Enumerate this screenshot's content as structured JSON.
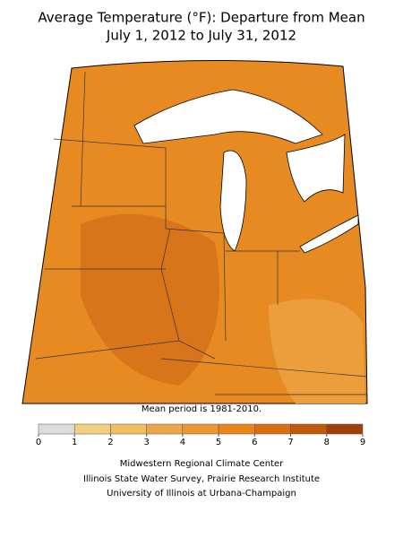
{
  "title": [
    "Average Temperature (°F): Departure from Mean",
    "July 1, 2012 to July 31, 2012"
  ],
  "note": "Mean period is 1981-2010.",
  "legend": {
    "ticks": [
      0,
      1,
      2,
      3,
      4,
      5,
      6,
      7,
      8,
      9
    ],
    "colors": [
      "#dcdcdc",
      "#f0d080",
      "#efbe5e",
      "#eca64a",
      "#ec9832",
      "#e8861a",
      "#d87010",
      "#c05a0a",
      "#a04008"
    ]
  },
  "credits": [
    "Midwestern Regional Climate Center",
    "Illinois State Water Survey, Prairie Research Institute",
    "University of Illinois at Urbana-Champaign"
  ]
}
